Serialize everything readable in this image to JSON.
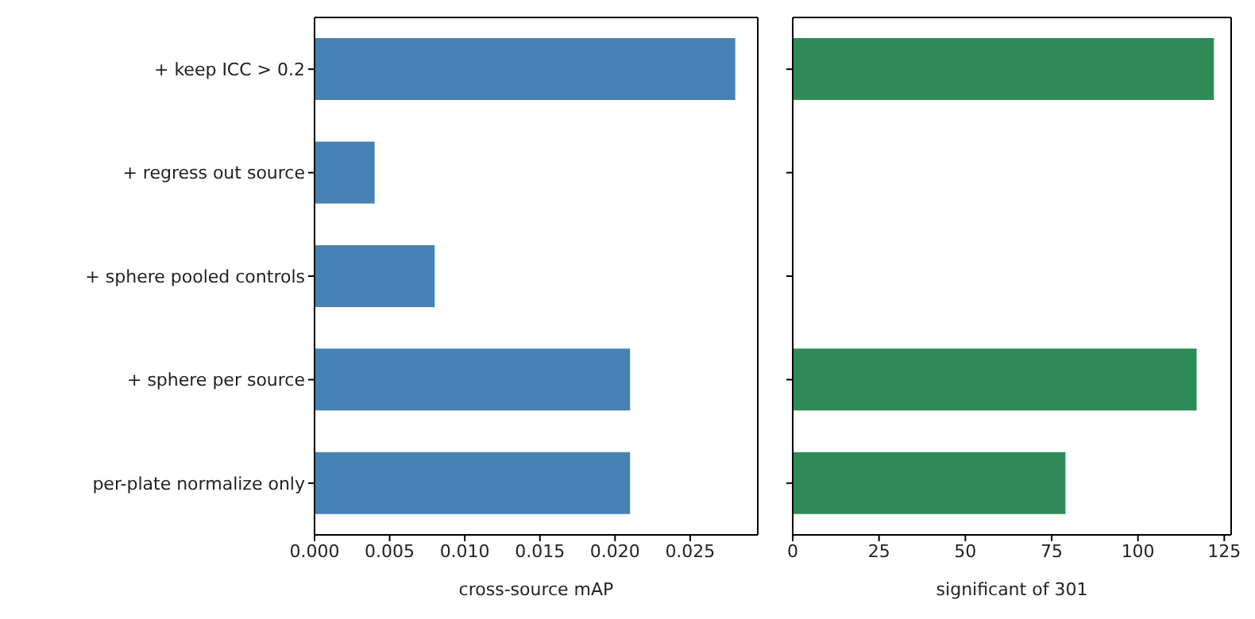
{
  "chart_data": [
    {
      "type": "bar",
      "orientation": "horizontal",
      "categories": [
        "+ keep ICC > 0.2",
        "+ regress out source",
        "+ sphere pooled controls",
        "+ sphere per source",
        "per-plate normalize only"
      ],
      "values": [
        0.028,
        0.004,
        0.008,
        0.021,
        0.021
      ],
      "color": "#4682b4",
      "xlabel": "cross-source mAP",
      "xlim": [
        0,
        0.0295
      ],
      "xticks": [
        {
          "value": 0,
          "label": "0.000"
        },
        {
          "value": 0.005,
          "label": "0.005"
        },
        {
          "value": 0.01,
          "label": "0.010"
        },
        {
          "value": 0.015,
          "label": "0.015"
        },
        {
          "value": 0.02,
          "label": "0.020"
        },
        {
          "value": 0.025,
          "label": "0.025"
        }
      ],
      "grid": false
    },
    {
      "type": "bar",
      "orientation": "horizontal",
      "categories": [
        null,
        null,
        null,
        null,
        null
      ],
      "values": [
        122,
        0,
        0,
        117,
        79
      ],
      "color": "#2e8b57",
      "xlabel": "significant of 301",
      "xlim": [
        0,
        127
      ],
      "xticks": [
        0,
        25,
        50,
        75,
        100,
        125
      ],
      "grid": false,
      "tick_labels": "x"
    }
  ]
}
